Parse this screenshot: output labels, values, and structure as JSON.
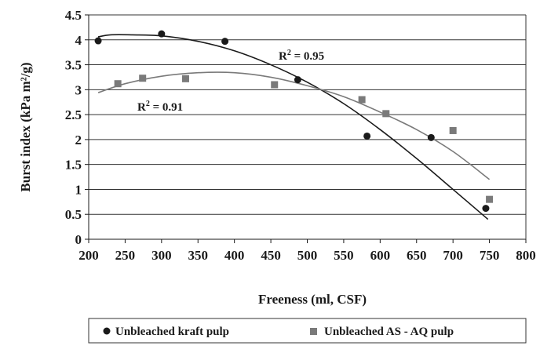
{
  "chart_data": {
    "type": "scatter",
    "xlabel": "Freeness (ml, CSF)",
    "ylabel": "Burst index (kPa m²/g)",
    "xlim": [
      200,
      800
    ],
    "ylim": [
      0,
      4.5
    ],
    "xticks": [
      "200",
      "250",
      "300",
      "350",
      "400",
      "450",
      "500",
      "550",
      "600",
      "650",
      "700",
      "750",
      "800"
    ],
    "yticks": [
      "0",
      "0.5",
      "1",
      "1.5",
      "2",
      "2.5",
      "3",
      "3.5",
      "4",
      "4.5"
    ],
    "grid": "horizontal",
    "legend_position": "bottom",
    "series": [
      {
        "name": "Unbleached kraft pulp",
        "marker": "circle",
        "color": "#1a1a1a",
        "points": [
          [
            213,
            3.98
          ],
          [
            300,
            4.12
          ],
          [
            387,
            3.97
          ],
          [
            487,
            3.2
          ],
          [
            582,
            2.07
          ],
          [
            670,
            2.04
          ],
          [
            745,
            0.62
          ]
        ],
        "trendline": {
          "type": "polynomial",
          "x": [
            213,
            230,
            260,
            300,
            350,
            400,
            450,
            500,
            550,
            600,
            650,
            700,
            748
          ],
          "y": [
            4.06,
            4.1,
            4.1,
            4.08,
            3.97,
            3.78,
            3.5,
            3.15,
            2.72,
            2.2,
            1.62,
            1.0,
            0.4
          ]
        },
        "r2_label": {
          "base": "R",
          "exp": "2",
          "value": " = 0.95"
        }
      },
      {
        "name": "Unbleached AS - AQ pulp",
        "marker": "square",
        "color": "#7a7a7a",
        "points": [
          [
            240,
            3.12
          ],
          [
            274,
            3.23
          ],
          [
            333,
            3.22
          ],
          [
            455,
            3.1
          ],
          [
            575,
            2.8
          ],
          [
            608,
            2.52
          ],
          [
            700,
            2.18
          ],
          [
            750,
            0.8
          ]
        ],
        "trendline": {
          "type": "polynomial",
          "x": [
            213,
            250,
            300,
            350,
            400,
            450,
            500,
            550,
            600,
            650,
            700,
            750
          ],
          "y": [
            2.94,
            3.12,
            3.27,
            3.34,
            3.34,
            3.25,
            3.08,
            2.86,
            2.55,
            2.2,
            1.76,
            1.2
          ]
        },
        "r2_label": {
          "base": "R",
          "exp": "2",
          "value": " = 0.91"
        }
      }
    ]
  }
}
